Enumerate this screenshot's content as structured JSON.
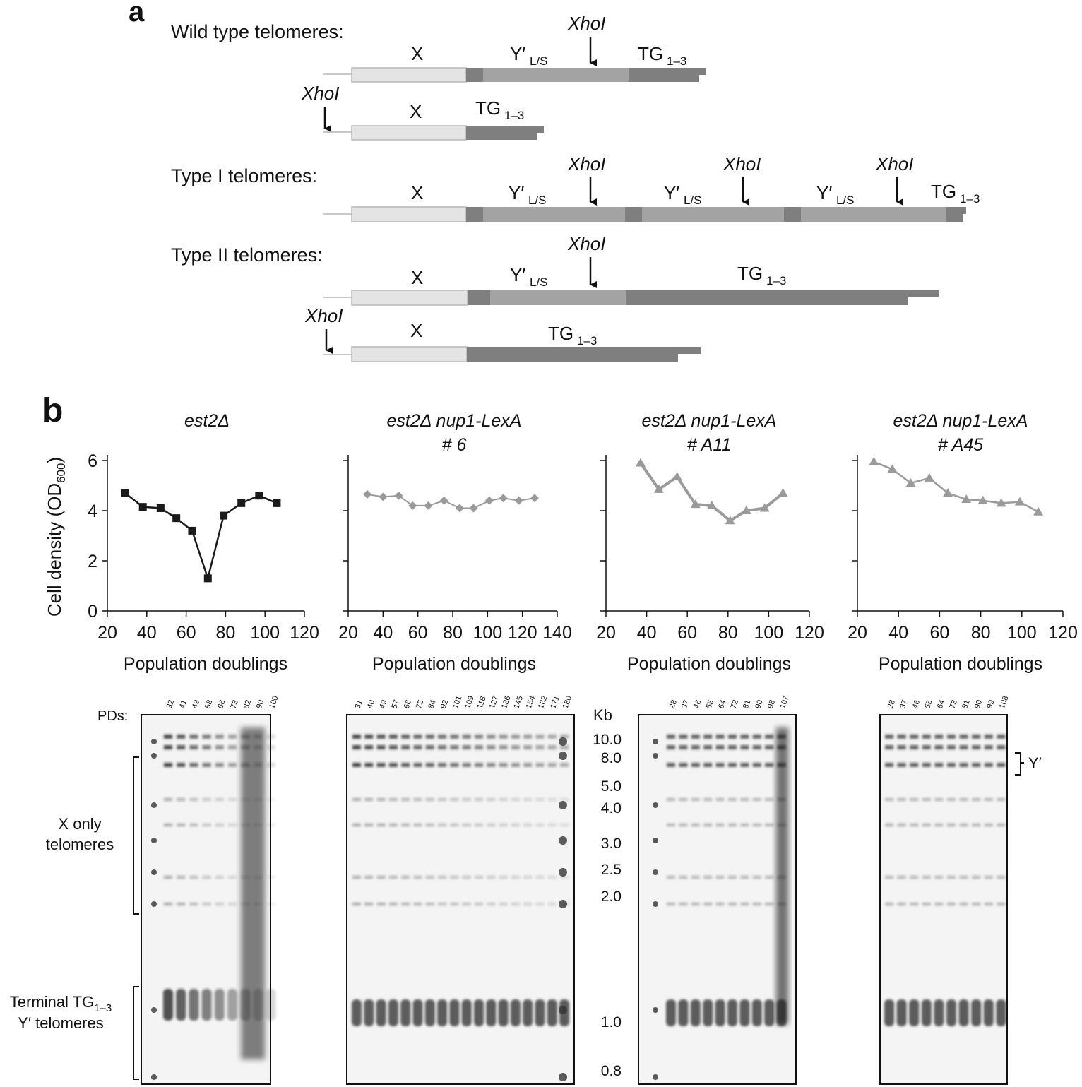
{
  "panel_a": {
    "label": "a",
    "sections": {
      "wild_type": "Wild type telomeres:",
      "type1": "Type I telomeres:",
      "type2": "Type II telomeres:"
    },
    "labels": {
      "xhoi": "XhoI",
      "x": "X",
      "yprime": "Y′",
      "ls_sub": "L/S",
      "tg": "TG",
      "tg_sub": "1–3"
    }
  },
  "panel_b": {
    "label": "b",
    "y_axis_label": "Cell density (OD",
    "y_axis_sub": "600",
    "y_axis_close": ")",
    "x_axis_label": "Population doublings",
    "gel": {
      "pds_label": "PDs:",
      "kb_label": "Kb",
      "kb_markers": [
        "10.0",
        "8.0",
        "5.0",
        "4.0",
        "3.0",
        "2.5",
        "2.0",
        "1.0",
        "0.8"
      ],
      "x_only_line1": "X only",
      "x_only_line2": "telomeres",
      "terminal_line1": "Terminal TG",
      "terminal_sub": "1–3",
      "terminal_line2": "Y′ telomeres",
      "yprime_bracket": "Y′",
      "lanes": [
        [
          "32",
          "41",
          "49",
          "58",
          "66",
          "73",
          "82",
          "90",
          "100"
        ],
        [
          "31",
          "40",
          "49",
          "57",
          "66",
          "75",
          "84",
          "92",
          "101",
          "109",
          "118",
          "127",
          "136",
          "145",
          "154",
          "162",
          "171",
          "180"
        ],
        [
          "28",
          "37",
          "46",
          "55",
          "64",
          "72",
          "81",
          "90",
          "98",
          "107"
        ],
        [
          "28",
          "37",
          "46",
          "55",
          "64",
          "73",
          "81",
          "90",
          "99",
          "108"
        ]
      ]
    }
  },
  "chart_data": [
    {
      "type": "line",
      "title": "est2Δ",
      "title_line2": "",
      "xlabel": "Population doublings",
      "ylabel": "Cell density (OD600)",
      "xlim": [
        20,
        120
      ],
      "xticks": [
        20,
        40,
        60,
        80,
        100,
        120
      ],
      "ylim": [
        0,
        6
      ],
      "yticks": [
        0,
        2,
        4,
        6
      ],
      "marker": "square",
      "color": "#1a1a1a",
      "x": [
        29,
        38,
        47,
        55,
        63,
        71,
        79,
        88,
        97,
        106
      ],
      "y": [
        4.7,
        4.15,
        4.1,
        3.7,
        3.2,
        1.3,
        3.8,
        4.3,
        4.6,
        4.3
      ]
    },
    {
      "type": "line",
      "title": "est2Δ nup1-LexA",
      "title_line2": "# 6",
      "xlabel": "Population doublings",
      "ylabel": "",
      "xlim": [
        20,
        140
      ],
      "xticks": [
        20,
        40,
        60,
        80,
        100,
        120,
        140
      ],
      "ylim": [
        0,
        6
      ],
      "yticks": [
        0,
        2,
        4,
        6
      ],
      "marker": "diamond",
      "color": "#9a9a9a",
      "x": [
        31,
        40,
        49,
        57,
        66,
        75,
        84,
        92,
        101,
        109,
        118,
        127
      ],
      "y": [
        4.65,
        4.55,
        4.6,
        4.2,
        4.2,
        4.4,
        4.1,
        4.1,
        4.4,
        4.5,
        4.4,
        4.5
      ]
    },
    {
      "type": "line",
      "title": "est2Δ nup1-LexA",
      "title_line2": "# A11",
      "xlabel": "Population doublings",
      "ylabel": "",
      "xlim": [
        20,
        120
      ],
      "xticks": [
        20,
        40,
        60,
        80,
        100,
        120
      ],
      "ylim": [
        0,
        6
      ],
      "yticks": [
        0,
        2,
        4,
        6
      ],
      "marker": "triangle",
      "color": "#9a9a9a",
      "x": [
        37,
        46,
        55,
        64,
        72,
        81,
        89,
        98,
        107
      ],
      "y": [
        5.9,
        4.85,
        5.35,
        4.25,
        4.2,
        3.6,
        4.0,
        4.1,
        4.7
      ]
    },
    {
      "type": "line",
      "title": "est2Δ nup1-LexA",
      "title_line2": "# A45",
      "xlabel": "Population doublings",
      "ylabel": "",
      "xlim": [
        20,
        120
      ],
      "xticks": [
        20,
        40,
        60,
        80,
        100,
        120
      ],
      "ylim": [
        0,
        6
      ],
      "yticks": [
        0,
        2,
        4,
        6
      ],
      "marker": "triangle",
      "color": "#9a9a9a",
      "x": [
        28,
        37,
        46,
        55,
        64,
        73,
        81,
        90,
        99,
        108
      ],
      "y": [
        5.95,
        5.65,
        5.1,
        5.3,
        4.7,
        4.45,
        4.4,
        4.3,
        4.35,
        3.95
      ]
    }
  ]
}
